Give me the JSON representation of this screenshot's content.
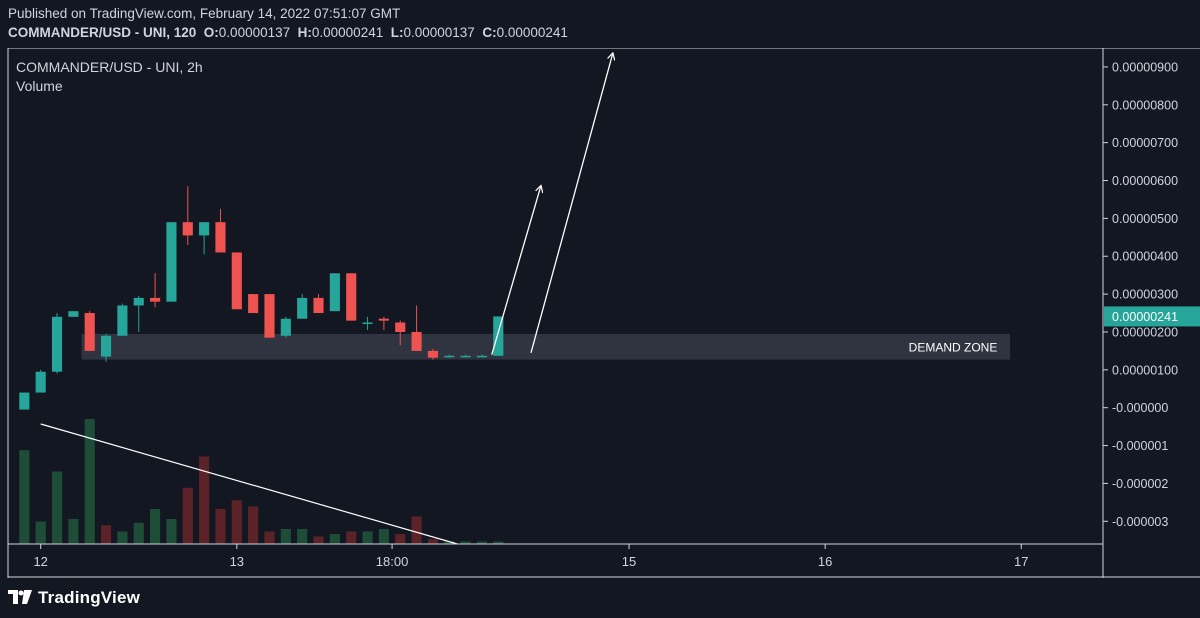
{
  "header": {
    "published": "Published on TradingView.com, February 14, 2022 07:51:07 GMT",
    "symbol_line": "COMMANDER/USD - UNI, 120",
    "o_label": "O:",
    "o_value": "0.00000137",
    "h_label": "H:",
    "h_value": "0.00000241",
    "l_label": "L:",
    "l_value": "0.00000137",
    "c_label": "C:",
    "c_value": "0.00000241"
  },
  "legend": {
    "title": "COMMANDER/USD - UNI, 2h",
    "volume": "Volume"
  },
  "annotations": {
    "demand_zone": "DEMAND ZONE",
    "demand_zone_low": 1.27e-06,
    "demand_zone_high": 1.95e-06
  },
  "colors": {
    "background": "#131722",
    "up": "#26a69a",
    "down": "#ef5350",
    "vol_up": "#1e4d37",
    "vol_down": "#5b2327",
    "zone": "#363a45",
    "last_price_bg": "#26a69a"
  },
  "footer": {
    "brand": "TradingView"
  },
  "chart_data": {
    "type": "candlestick",
    "y_axis_ticks": [
      {
        "value": 9e-06,
        "label": "0.00000900"
      },
      {
        "value": 8e-06,
        "label": "0.00000800"
      },
      {
        "value": 7e-06,
        "label": "0.00000700"
      },
      {
        "value": 6e-06,
        "label": "0.00000600"
      },
      {
        "value": 5e-06,
        "label": "0.00000500"
      },
      {
        "value": 4e-06,
        "label": "0.00000400"
      },
      {
        "value": 3e-06,
        "label": "0.00000300"
      },
      {
        "value": 2e-06,
        "label": "0.00000200"
      },
      {
        "value": 1e-06,
        "label": "0.00000100"
      },
      {
        "value": 0.0,
        "label": "-0.000000"
      },
      {
        "value": -1e-06,
        "label": "-0.000001"
      },
      {
        "value": -2e-06,
        "label": "-0.000002"
      },
      {
        "value": -3e-06,
        "label": "-0.000003"
      }
    ],
    "ylim": [
      -3.6e-06,
      9.5e-06
    ],
    "last_price": {
      "value": 2.41e-06,
      "label": "0.00000241"
    },
    "x_ticks": [
      {
        "label": "12",
        "index": 1
      },
      {
        "label": "13",
        "index": 13
      },
      {
        "label": "18:00",
        "index": 22.5
      },
      {
        "label": "15",
        "index": 37
      },
      {
        "label": "16",
        "index": 49
      },
      {
        "label": "17",
        "index": 61
      }
    ],
    "xlim": [
      -1,
      66
    ],
    "candles": [
      {
        "o": -5e-08,
        "h": 4e-07,
        "l": -5e-08,
        "c": 4e-07
      },
      {
        "o": 4e-07,
        "h": 1e-06,
        "l": 4e-07,
        "c": 9.5e-07
      },
      {
        "o": 9.5e-07,
        "h": 2.5e-06,
        "l": 9e-07,
        "c": 2.4e-06
      },
      {
        "o": 2.4e-06,
        "h": 2.55e-06,
        "l": 2.4e-06,
        "c": 2.55e-06
      },
      {
        "o": 2.5e-06,
        "h": 2.55e-06,
        "l": 1.5e-06,
        "c": 1.5e-06
      },
      {
        "o": 1.35e-06,
        "h": 1.95e-06,
        "l": 1.22e-06,
        "c": 1.9e-06
      },
      {
        "o": 1.9e-06,
        "h": 2.75e-06,
        "l": 1.9e-06,
        "c": 2.7e-06
      },
      {
        "o": 2.7e-06,
        "h": 2.95e-06,
        "l": 2e-06,
        "c": 2.9e-06
      },
      {
        "o": 2.9e-06,
        "h": 3.55e-06,
        "l": 2.65e-06,
        "c": 2.8e-06
      },
      {
        "o": 2.8e-06,
        "h": 4.9e-06,
        "l": 2.8e-06,
        "c": 4.9e-06
      },
      {
        "o": 4.9e-06,
        "h": 5.85e-06,
        "l": 4.3e-06,
        "c": 4.55e-06
      },
      {
        "o": 4.55e-06,
        "h": 4.9e-06,
        "l": 4.05e-06,
        "c": 4.9e-06
      },
      {
        "o": 4.9e-06,
        "h": 5.25e-06,
        "l": 4.1e-06,
        "c": 4.1e-06
      },
      {
        "o": 4.1e-06,
        "h": 4.1e-06,
        "l": 2.6e-06,
        "c": 2.6e-06
      },
      {
        "o": 3e-06,
        "h": 3e-06,
        "l": 2.5e-06,
        "c": 2.5e-06
      },
      {
        "o": 3e-06,
        "h": 3e-06,
        "l": 1.85e-06,
        "c": 1.85e-06
      },
      {
        "o": 1.9e-06,
        "h": 2.4e-06,
        "l": 1.85e-06,
        "c": 2.35e-06
      },
      {
        "o": 2.35e-06,
        "h": 3e-06,
        "l": 2.35e-06,
        "c": 2.9e-06
      },
      {
        "o": 2.9e-06,
        "h": 3e-06,
        "l": 2.5e-06,
        "c": 2.5e-06
      },
      {
        "o": 2.55e-06,
        "h": 3.55e-06,
        "l": 2.55e-06,
        "c": 3.55e-06
      },
      {
        "o": 3.55e-06,
        "h": 3.55e-06,
        "l": 2.3e-06,
        "c": 2.3e-06
      },
      {
        "o": 2.25e-06,
        "h": 2.4e-06,
        "l": 2.05e-06,
        "c": 2.25e-06
      },
      {
        "o": 2.35e-06,
        "h": 2.4e-06,
        "l": 2.05e-06,
        "c": 2.3e-06
      },
      {
        "o": 2.25e-06,
        "h": 2.3e-06,
        "l": 1.65e-06,
        "c": 2e-06
      },
      {
        "o": 2e-06,
        "h": 2.7e-06,
        "l": 1.5e-06,
        "c": 1.5e-06
      },
      {
        "o": 1.5e-06,
        "h": 1.55e-06,
        "l": 1.27e-06,
        "c": 1.32e-06
      },
      {
        "o": 1.35e-06,
        "h": 1.4e-06,
        "l": 1.33e-06,
        "c": 1.37e-06
      },
      {
        "o": 1.37e-06,
        "h": 1.4e-06,
        "l": 1.33e-06,
        "c": 1.37e-06
      },
      {
        "o": 1.37e-06,
        "h": 1.4e-06,
        "l": 1.33e-06,
        "c": 1.37e-06
      },
      {
        "o": 1.37e-06,
        "h": 2.41e-06,
        "l": 1.37e-06,
        "c": 2.41e-06
      }
    ],
    "volume": [
      0.75,
      0.18,
      0.58,
      0.2,
      1.0,
      0.15,
      0.1,
      0.17,
      0.28,
      0.2,
      0.45,
      0.7,
      0.28,
      0.35,
      0.3,
      0.1,
      0.12,
      0.12,
      0.06,
      0.08,
      0.1,
      0.1,
      0.12,
      0.08,
      0.22,
      0.04,
      0.02,
      0.02,
      0.02,
      0.02
    ],
    "volume_dir": [
      1,
      1,
      1,
      1,
      1,
      0,
      1,
      1,
      1,
      1,
      0,
      0,
      0,
      0,
      0,
      0,
      1,
      1,
      0,
      1,
      0,
      1,
      1,
      0,
      0,
      0,
      1,
      1,
      1,
      1
    ],
    "arrows": [
      {
        "from": [
          28.6,
          1.4e-06
        ],
        "to": [
          31.6,
          5.85e-06
        ]
      },
      {
        "from": [
          31.0,
          1.45e-06
        ],
        "to": [
          36.0,
          9.35e-06
        ]
      }
    ],
    "volume_trendline": {
      "from": [
        1,
        1.0
      ],
      "to": [
        26.5,
        0.0
      ]
    }
  }
}
